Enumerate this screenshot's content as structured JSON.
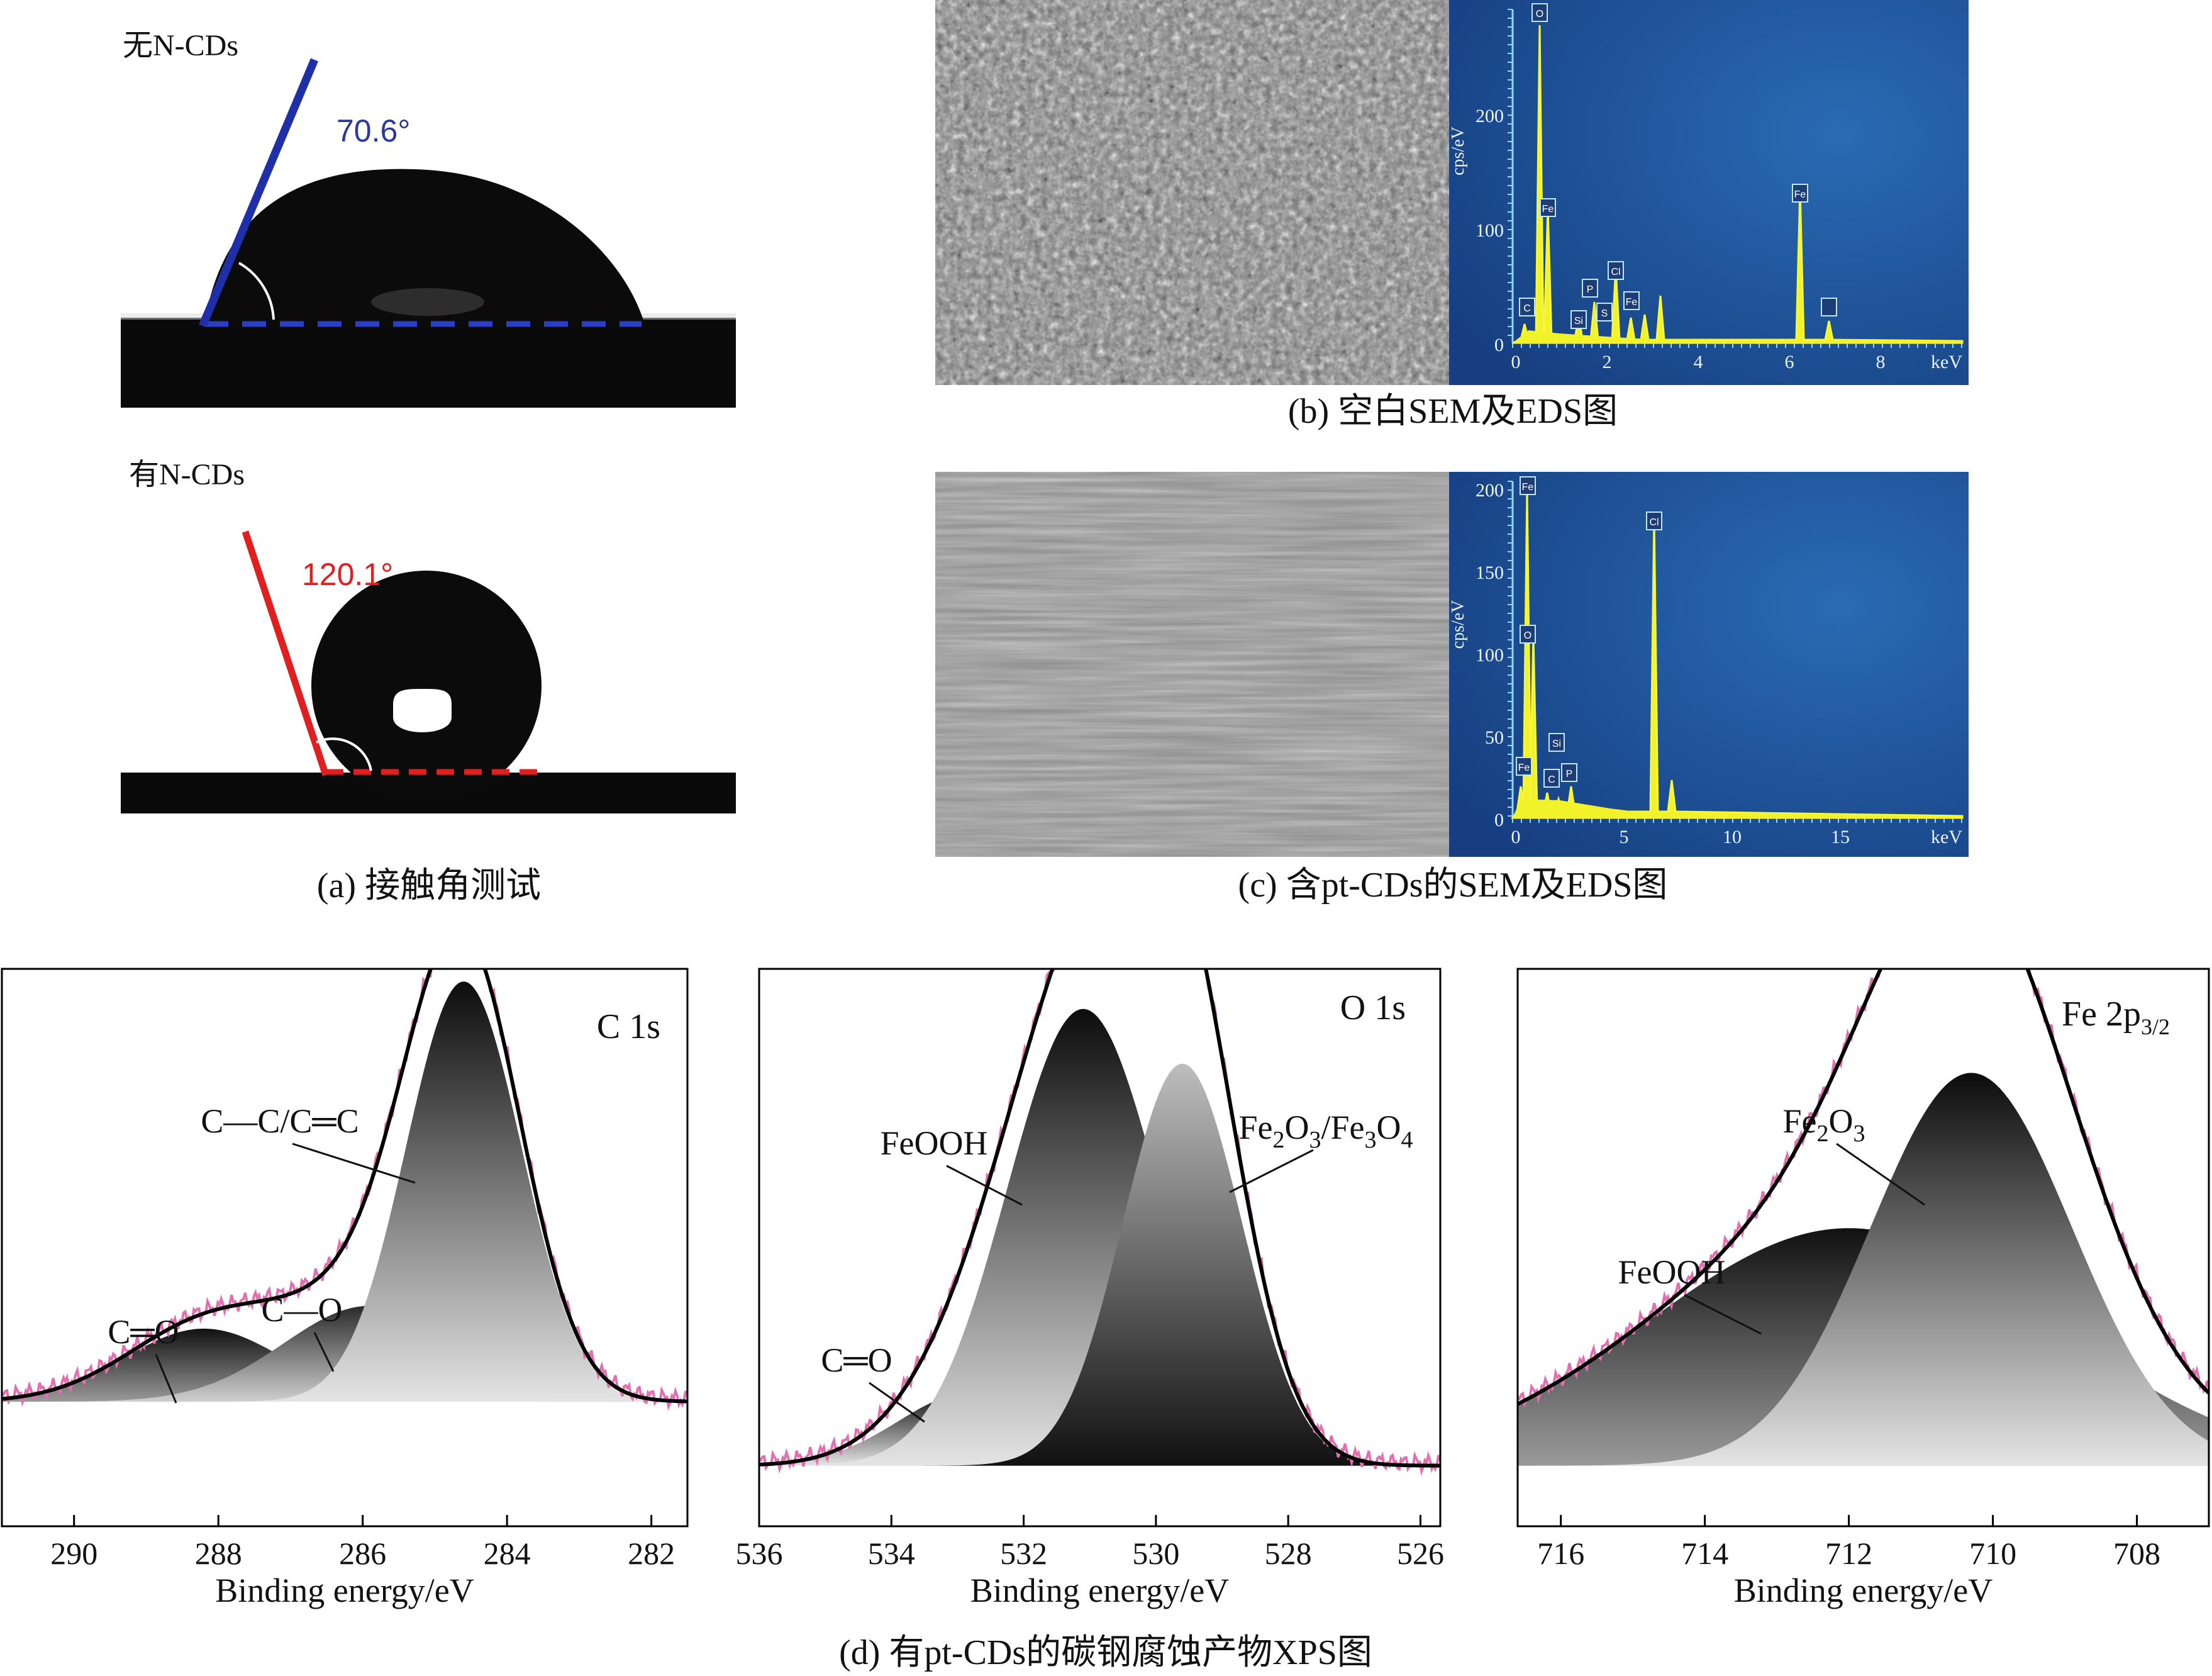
{
  "panel_a": {
    "top_label": "无N-CDs",
    "top_angle": "70.6°",
    "bottom_label": "有N-CDs",
    "bottom_angle": "120.1°",
    "caption": "(a) 接触角测试",
    "colors": {
      "top_line": "#1f2fa8",
      "bottom_line": "#e02020",
      "top_angle_text": "#2a3a9a",
      "bottom_angle_text": "#e02020"
    }
  },
  "panel_b": {
    "caption": "(b) 空白SEM及EDS图",
    "eds": {
      "ylabel": "cps/eV",
      "xunit": "keV",
      "xticks": [
        "0",
        "2",
        "4",
        "6",
        "8"
      ],
      "yticks": [
        "0",
        "100",
        "200"
      ],
      "peak_labels": [
        "O",
        "Fe",
        "C",
        "Si",
        "P",
        "S",
        "Cl",
        "Fe",
        "Fe"
      ]
    }
  },
  "panel_c": {
    "caption": "(c) 含pt-CDs的SEM及EDS图",
    "eds": {
      "ylabel": "cps/eV",
      "xunit": "keV",
      "xticks": [
        "0",
        "5",
        "10",
        "15"
      ],
      "yticks": [
        "0",
        "50",
        "100",
        "150",
        "200"
      ],
      "peak_labels": [
        "Fe",
        "Fe",
        "O",
        "C",
        "Si",
        "P",
        "Cl"
      ]
    }
  },
  "panel_d": {
    "caption": "(d) 有pt-CDs的碳钢腐蚀产物XPS图",
    "xlabel": "Binding energy/eV"
  },
  "chart_data": [
    {
      "type": "area",
      "title": "C 1s",
      "xlabel": "Binding energy/eV",
      "xlim": [
        291,
        281.5
      ],
      "xticks": [
        290,
        288,
        286,
        284,
        282
      ],
      "series": [
        {
          "name": "C=O",
          "label": "C═O",
          "center": 288.2,
          "height": 0.16,
          "width": 1.1
        },
        {
          "name": "C-O",
          "label": "C—O",
          "center": 285.9,
          "height": 0.21,
          "width": 1.2
        },
        {
          "name": "C-C/C=C",
          "label": "C—C/C═C",
          "center": 284.6,
          "height": 0.92,
          "width": 0.8
        }
      ]
    },
    {
      "type": "area",
      "title": "O 1s",
      "xlabel": "Binding energy/eV",
      "xlim": [
        536,
        525.7
      ],
      "xticks": [
        536,
        534,
        532,
        530,
        528,
        526
      ],
      "series": [
        {
          "name": "C=O",
          "label": "C═O",
          "center": 532.8,
          "height": 0.16,
          "width": 1.1
        },
        {
          "name": "FeOOH",
          "label": "FeOOH",
          "center": 531.1,
          "height": 1.0,
          "width": 1.15
        },
        {
          "name": "Fe2O3/Fe3O4",
          "label": "Fe2O3/Fe3O4",
          "center": 529.6,
          "height": 0.88,
          "width": 0.9
        }
      ]
    },
    {
      "type": "area",
      "title": "Fe 2p3/2",
      "xlabel": "Binding energy/eV",
      "xlim": [
        716.6,
        707
      ],
      "xticks": [
        716,
        714,
        712,
        710,
        708
      ],
      "series": [
        {
          "name": "FeOOH",
          "label": "FeOOH",
          "center": 712.0,
          "height": 0.52,
          "width": 2.8
        },
        {
          "name": "Fe2O3",
          "label": "Fe2O3",
          "center": 710.3,
          "height": 0.86,
          "width": 1.4
        }
      ]
    }
  ]
}
